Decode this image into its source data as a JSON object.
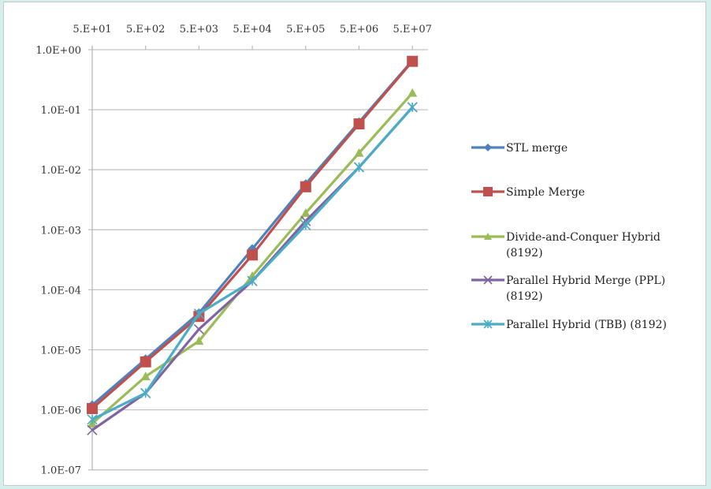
{
  "chart_data": {
    "type": "line",
    "title": "",
    "xlabel": "",
    "ylabel": "",
    "x_axis_position": "top",
    "y_scale": "log",
    "ylim": [
      1e-07,
      1
    ],
    "grid": "horizontal",
    "legend_position": "right",
    "categories": [
      "5.E+01",
      "5.E+02",
      "5.E+03",
      "5.E+04",
      "5.E+05",
      "5.E+06",
      "5.E+07"
    ],
    "y_tick_labels": [
      "1.0E+00",
      "1.0E-01",
      "1.0E-02",
      "1.0E-03",
      "1.0E-04",
      "1.0E-05",
      "1.0E-06",
      "1.0E-07"
    ],
    "series": [
      {
        "name": "STL merge",
        "color": "#4f81bd",
        "marker": "diamond",
        "values": [
          1.2e-06,
          7e-06,
          4.1e-05,
          0.00048,
          0.0058,
          0.062,
          0.66
        ]
      },
      {
        "name": "Simple Merge",
        "color": "#c0504d",
        "marker": "square",
        "values": [
          1.05e-06,
          6.3e-06,
          3.6e-05,
          0.00038,
          0.0052,
          0.058,
          0.64
        ]
      },
      {
        "name": "Divide-and-Conquer Hybrid (8192)",
        "color": "#9bbb59",
        "marker": "triangle",
        "values": [
          5.9e-07,
          3.6e-06,
          1.4e-05,
          0.00017,
          0.0019,
          0.019,
          0.19
        ]
      },
      {
        "name": "Parallel Hybrid Merge (PPL) (8192)",
        "color": "#8064a2",
        "marker": "x",
        "values": [
          4.6e-07,
          1.9e-06,
          2.2e-05,
          0.00014,
          0.0014,
          0.011,
          0.11
        ]
      },
      {
        "name": "Parallel Hybrid (TBB) (8192)",
        "color": "#4bacc6",
        "marker": "star",
        "values": [
          6.9e-07,
          1.9e-06,
          4e-05,
          0.00014,
          0.0012,
          0.011,
          0.11
        ]
      }
    ]
  },
  "legend": {
    "items": [
      {
        "line1": "STL merge",
        "line2": ""
      },
      {
        "line1": "Simple Merge",
        "line2": ""
      },
      {
        "line1": "Divide-and-Conquer Hybrid",
        "line2": "(8192)"
      },
      {
        "line1": "Parallel Hybrid Merge (PPL)",
        "line2": "(8192)"
      },
      {
        "line1": "Parallel Hybrid (TBB) (8192)",
        "line2": ""
      }
    ]
  }
}
